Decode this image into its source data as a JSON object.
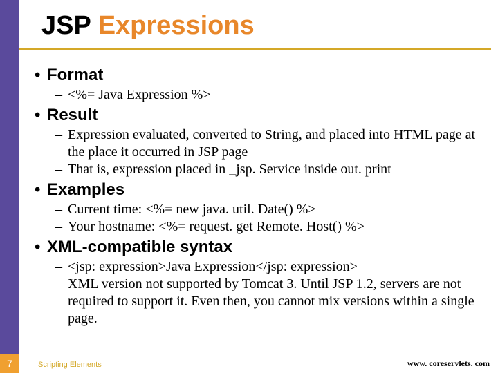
{
  "title_part1": "JSP ",
  "title_part2": "Expressions",
  "page_number": "7",
  "bullets": {
    "b1": "Format",
    "b1_1": "<%= Java Expression %>",
    "b2": "Result",
    "b2_1": "Expression evaluated, converted to String, and placed into HTML page at the place it occurred in JSP page",
    "b2_2": "That is, expression placed in _jsp. Service inside out. print",
    "b3": "Examples",
    "b3_1": "Current time: <%= new java. util. Date() %>",
    "b3_2": "Your hostname: <%= request. get Remote. Host() %>",
    "b4": "XML-compatible syntax",
    "b4_1": "<jsp: expression>Java Expression</jsp: expression>",
    "b4_2": "XML version not supported by Tomcat 3. Until JSP 1.2, servers are not required to support it. Even then, you cannot mix versions within a single page."
  },
  "footer_left": "Scripting Elements",
  "footer_right": "www. coreservlets. com",
  "colors": {
    "sidebar": "#5a4a9c",
    "pagebox": "#f0a030",
    "gold": "#d4a828",
    "orange": "#e8872a"
  }
}
